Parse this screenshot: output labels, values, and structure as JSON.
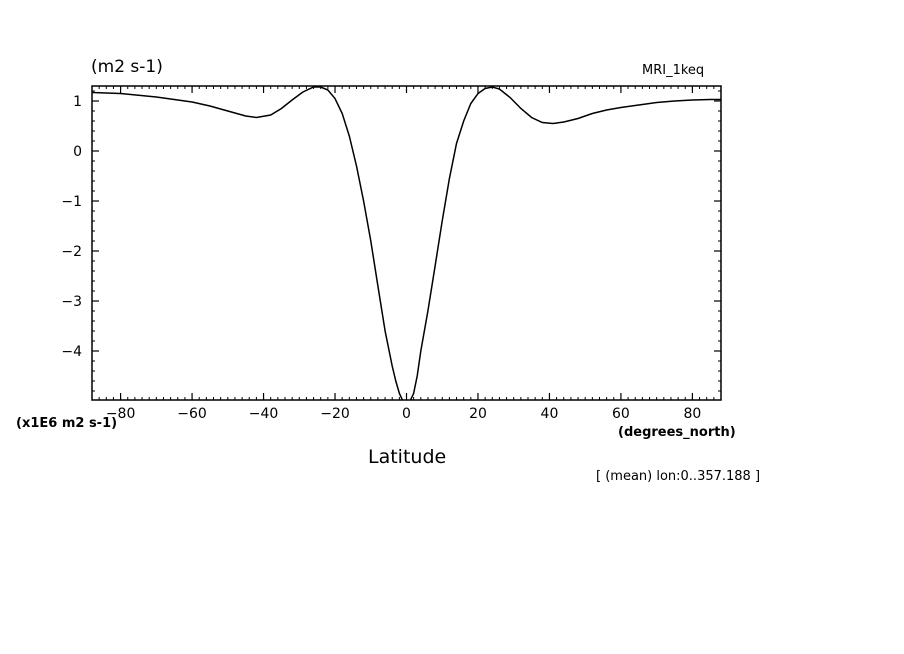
{
  "chart_data": {
    "type": "line",
    "title": "(m2 s-1)",
    "experiment": "MRI_1keq",
    "multiplier_label": "(x1E6 m2 s-1)",
    "x_units": "(degrees_north)",
    "xlabel": "Latitude",
    "note": "[ (mean) lon:0..357.188 ]",
    "xlim": [
      -88,
      88
    ],
    "ylim": [
      -4.98,
      1.3
    ],
    "x_ticks": [
      -80,
      -60,
      -40,
      -20,
      0,
      20,
      40,
      60,
      80
    ],
    "x_tick_labels": [
      "−80",
      "−60",
      "−40",
      "−20",
      "0",
      "20",
      "40",
      "60",
      "80"
    ],
    "y_ticks": [
      1,
      0,
      -1,
      -2,
      -3,
      -4
    ],
    "y_tick_labels": [
      "1",
      "0",
      "−1",
      "−2",
      "−3",
      "−4"
    ],
    "grid": false,
    "series": [
      {
        "x": [
          -88,
          -80,
          -70,
          -60,
          -55,
          -50,
          -45,
          -42,
          -38,
          -35,
          -32,
          -29,
          -26,
          -24,
          -22,
          -20,
          -18,
          -16,
          -14,
          -12,
          -10,
          -8,
          -6,
          -4,
          -3,
          -2,
          -1,
          0,
          1,
          2,
          3,
          4,
          6,
          8,
          10,
          12,
          14,
          16,
          18,
          20,
          22,
          24,
          26,
          29,
          32,
          35,
          38,
          41,
          44,
          48,
          52,
          56,
          60,
          65,
          70,
          75,
          80,
          85,
          88
        ],
        "y": [
          1.17,
          1.15,
          1.08,
          0.98,
          0.9,
          0.8,
          0.7,
          0.67,
          0.72,
          0.85,
          1.02,
          1.18,
          1.28,
          1.28,
          1.22,
          1.05,
          0.75,
          0.3,
          -0.3,
          -1.0,
          -1.8,
          -2.7,
          -3.6,
          -4.3,
          -4.6,
          -4.85,
          -5.0,
          -5.0,
          -5.0,
          -4.85,
          -4.5,
          -4.0,
          -3.2,
          -2.3,
          -1.4,
          -0.55,
          0.15,
          0.6,
          0.95,
          1.15,
          1.25,
          1.28,
          1.24,
          1.07,
          0.85,
          0.67,
          0.57,
          0.55,
          0.58,
          0.65,
          0.75,
          0.82,
          0.87,
          0.92,
          0.97,
          1.0,
          1.02,
          1.03,
          1.03
        ]
      }
    ]
  }
}
